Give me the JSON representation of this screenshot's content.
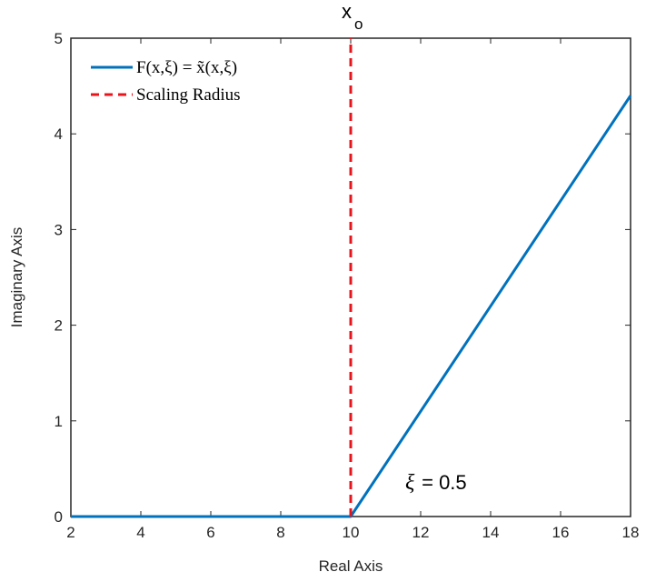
{
  "chart_data": {
    "type": "line",
    "title": "",
    "xlabel": "Real Axis",
    "ylabel": "Imaginary Axis",
    "xlim": [
      2,
      18
    ],
    "ylim": [
      0,
      5
    ],
    "xticks": [
      2,
      4,
      6,
      8,
      10,
      12,
      14,
      16,
      18
    ],
    "yticks": [
      0,
      1,
      2,
      3,
      4,
      5
    ],
    "grid": false,
    "legend_position": "top-left",
    "series": [
      {
        "name": "F(x,ξ) = x̃(x,ξ)",
        "style": "solid",
        "color": "#0072bd",
        "x": [
          2,
          10,
          18
        ],
        "y": [
          0,
          0,
          4.4
        ]
      },
      {
        "name": "Scaling Radius",
        "style": "dashed",
        "color": "#e8141c",
        "x": [
          10,
          10
        ],
        "y": [
          0,
          5
        ]
      }
    ],
    "annotations": {
      "top_marker": {
        "main": "x",
        "sub": "o"
      },
      "xi_label": {
        "symbol": "ξ",
        "text": " = 0.5"
      }
    }
  }
}
